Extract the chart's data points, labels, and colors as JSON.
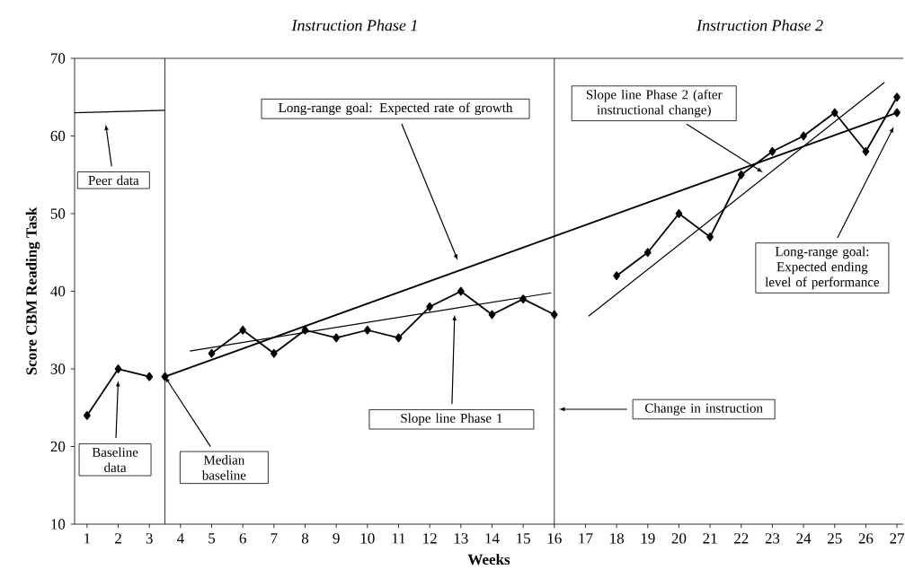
{
  "chart_data": {
    "type": "line",
    "xlabel": "Weeks",
    "ylabel": "Score CBM Reading Task",
    "xlim": [
      0.6,
      27.2
    ],
    "ylim": [
      10,
      70
    ],
    "xticks": [
      1,
      2,
      3,
      4,
      5,
      6,
      7,
      8,
      9,
      10,
      11,
      12,
      13,
      14,
      15,
      16,
      17,
      18,
      19,
      20,
      21,
      22,
      23,
      24,
      25,
      26,
      27
    ],
    "yticks": [
      10,
      20,
      30,
      40,
      50,
      60,
      70
    ],
    "grid": false,
    "series": [
      {
        "color": "#000000",
        "marker": "diamond",
        "x": [
          1,
          2,
          3
        ],
        "values": [
          24,
          30,
          29
        ]
      },
      {
        "color": "#000000",
        "marker": "diamond",
        "x": [
          5,
          6,
          7,
          8,
          9,
          10,
          11,
          12,
          13,
          14,
          15,
          16
        ],
        "values": [
          32,
          35,
          32,
          35,
          34,
          35,
          34,
          38,
          40,
          37,
          39,
          37
        ]
      },
      {
        "color": "#000000",
        "marker": "diamond",
        "x": [
          18,
          19,
          20,
          21,
          22,
          23,
          24,
          25,
          26,
          27
        ],
        "values": [
          42,
          45,
          50,
          47,
          55,
          58,
          60,
          63,
          58,
          65
        ]
      },
      {
        "color": "#000000",
        "marker": "none",
        "x": [
          0.6,
          3.5
        ],
        "values": [
          63,
          63.3
        ]
      },
      {
        "color": "#000000",
        "marker": "diamond",
        "x": [
          3.5,
          27
        ],
        "values": [
          29,
          63
        ]
      },
      {
        "color": "#000000",
        "marker": "none",
        "x": [
          4.3,
          15.9
        ],
        "values": [
          32.3,
          39.8
        ]
      },
      {
        "color": "#000000",
        "marker": "none",
        "x": [
          17.1,
          26.6
        ],
        "values": [
          36.8,
          66.9
        ]
      }
    ],
    "ref_lines": [
      {
        "axis": "x",
        "value": 3.5
      },
      {
        "axis": "x",
        "value": 16
      }
    ],
    "annotations": [
      "Instruction Phase 1",
      "Instruction Phase 2",
      "Peer data",
      "Baseline data",
      {
        "text": "Median baseline",
        "x": 3.5,
        "y": 29
      },
      "Long-range goal: Expected rate of growth",
      "Slope line Phase 1",
      "Change in instruction",
      "Slope line Phase 2 (after instructional change)",
      "Long-range goal: Expected ending level of performance"
    ]
  }
}
